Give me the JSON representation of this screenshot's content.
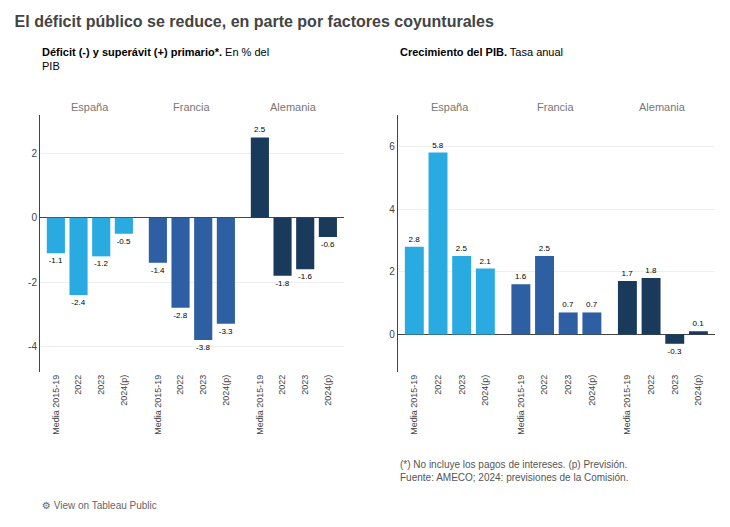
{
  "title": "El déficit público se reduce, en parte por factores coyunturales",
  "annotations": [
    "(*) No incluye los pagos de intereses. (p) Previsión.\nFuente: AMECO; 2024: previsiones de la Comisión.",
    "⚙ View on Tableau Public"
  ],
  "chart_data": [
    {
      "type": "bar",
      "title": "Déficit (-) y superávit (+) primario*.",
      "subtitle": " En % del\nPIB",
      "categories": [
        "Media 2015-19",
        "2022",
        "2023",
        "2024(p)"
      ],
      "series": [
        {
          "name": "España",
          "color": "#29ABE2",
          "values": [
            -1.1,
            -2.4,
            -1.2,
            -0.5
          ]
        },
        {
          "name": "Francia",
          "color": "#2E5FA3",
          "values": [
            -1.4,
            -2.8,
            -3.8,
            -3.3
          ]
        },
        {
          "name": "Alemania",
          "color": "#1A3A5C",
          "values": [
            2.5,
            -1.8,
            -1.6,
            -0.6
          ]
        }
      ],
      "ylim": [
        -4.8,
        3.2
      ],
      "yticks": [
        -4,
        -2,
        0,
        2
      ],
      "grid": true,
      "data_labels": true
    },
    {
      "type": "bar",
      "title": "Crecimiento del PIB.",
      "subtitle": " Tasa anual",
      "categories": [
        "Media 2015-19",
        "2022",
        "2023",
        "2024(p)"
      ],
      "series": [
        {
          "name": "España",
          "color": "#29ABE2",
          "values": [
            2.8,
            5.8,
            2.5,
            2.1
          ]
        },
        {
          "name": "Francia",
          "color": "#2E5FA3",
          "values": [
            1.6,
            2.5,
            0.7,
            0.7
          ]
        },
        {
          "name": "Alemania",
          "color": "#1A3A5C",
          "values": [
            1.7,
            1.8,
            -0.3,
            0.1
          ]
        }
      ],
      "ylim": [
        -1.2,
        7.0
      ],
      "yticks": [
        0,
        2,
        4,
        6
      ],
      "grid": true,
      "data_labels": true
    }
  ]
}
